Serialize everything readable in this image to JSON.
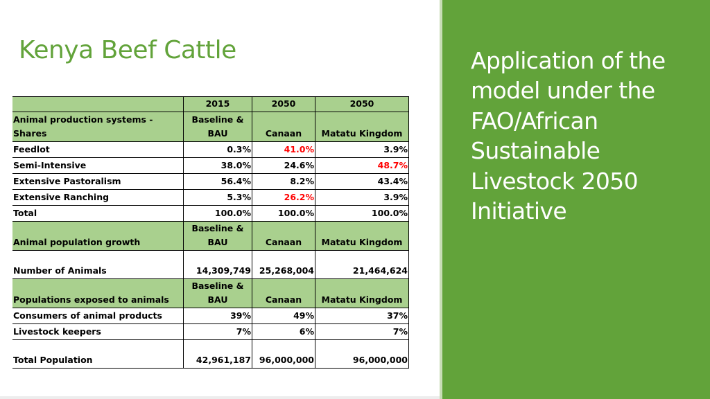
{
  "title": "Kenya Beef Cattle",
  "side_panel": {
    "text": "Application of the model under the FAO/African Sustainable Livestock 2050 Initiative"
  },
  "colors": {
    "accent_green": "#62A33A",
    "header_green": "#A9D08E",
    "highlight_red": "#FF0000"
  },
  "table": {
    "year_row": [
      "",
      "2015",
      "2050",
      "2050"
    ],
    "section1": {
      "header": [
        "Animal production systems - Shares",
        "Baseline & BAU",
        "Canaan",
        "Matatu Kingdom"
      ],
      "rows": [
        [
          "Feedlot",
          "0.3%",
          "41.0%",
          "3.9%"
        ],
        [
          "Semi-Intensive",
          "38.0%",
          "24.6%",
          "48.7%"
        ],
        [
          "Extensive Pastoralism",
          "56.4%",
          "8.2%",
          "43.4%"
        ],
        [
          "Extensive Ranching",
          "5.3%",
          "26.2%",
          "3.9%"
        ],
        [
          "Total",
          "100.0%",
          "100.0%",
          "100.0%"
        ]
      ]
    },
    "section2": {
      "header": [
        "Animal population growth",
        "Baseline & BAU",
        "Canaan",
        "Matatu Kingdom"
      ],
      "rows": [
        [
          "Number of Animals",
          "14,309,749",
          "25,268,004",
          "21,464,624"
        ]
      ]
    },
    "section3": {
      "header": [
        "Populations exposed to animals",
        "Baseline & BAU",
        "Canaan",
        "Matatu Kingdom"
      ],
      "rows": [
        [
          "Consumers of animal products",
          "39%",
          "49%",
          "37%"
        ],
        [
          "Livestock keepers",
          "7%",
          "6%",
          "7%"
        ],
        [
          "Total Population",
          "42,961,187",
          "96,000,000",
          "96,000,000"
        ]
      ]
    }
  }
}
